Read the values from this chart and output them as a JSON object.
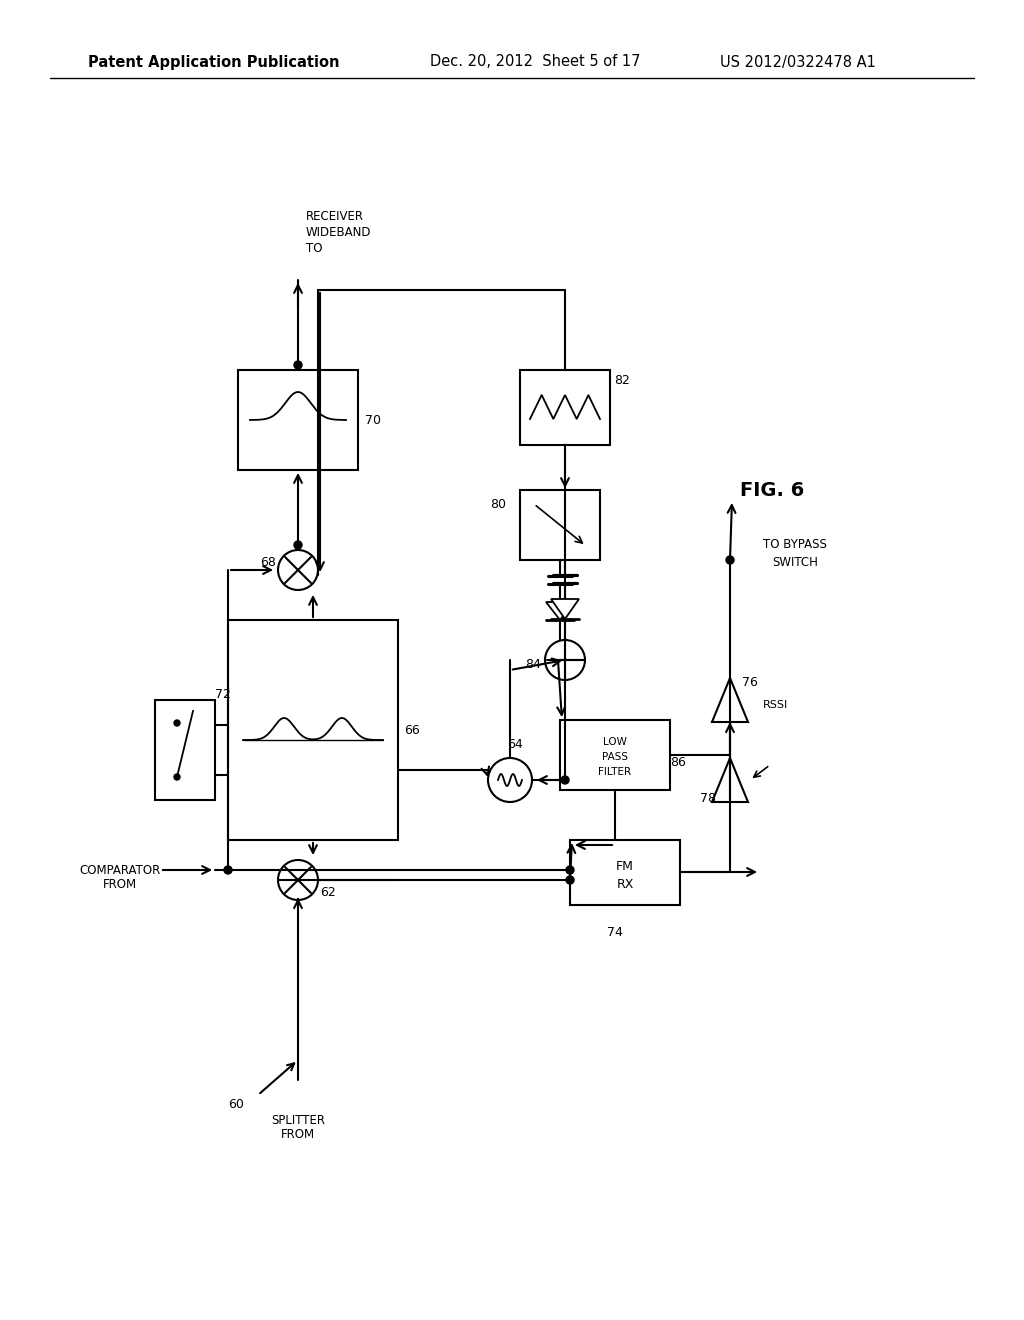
{
  "title_left": "Patent Application Publication",
  "title_mid": "Dec. 20, 2012  Sheet 5 of 17",
  "title_right": "US 2012/0322478 A1",
  "fig_label": "FIG. 6",
  "background": "#ffffff",
  "line_color": "#000000",
  "font_size_header": 10.5,
  "font_size_label": 8.5,
  "font_size_ref": 9
}
